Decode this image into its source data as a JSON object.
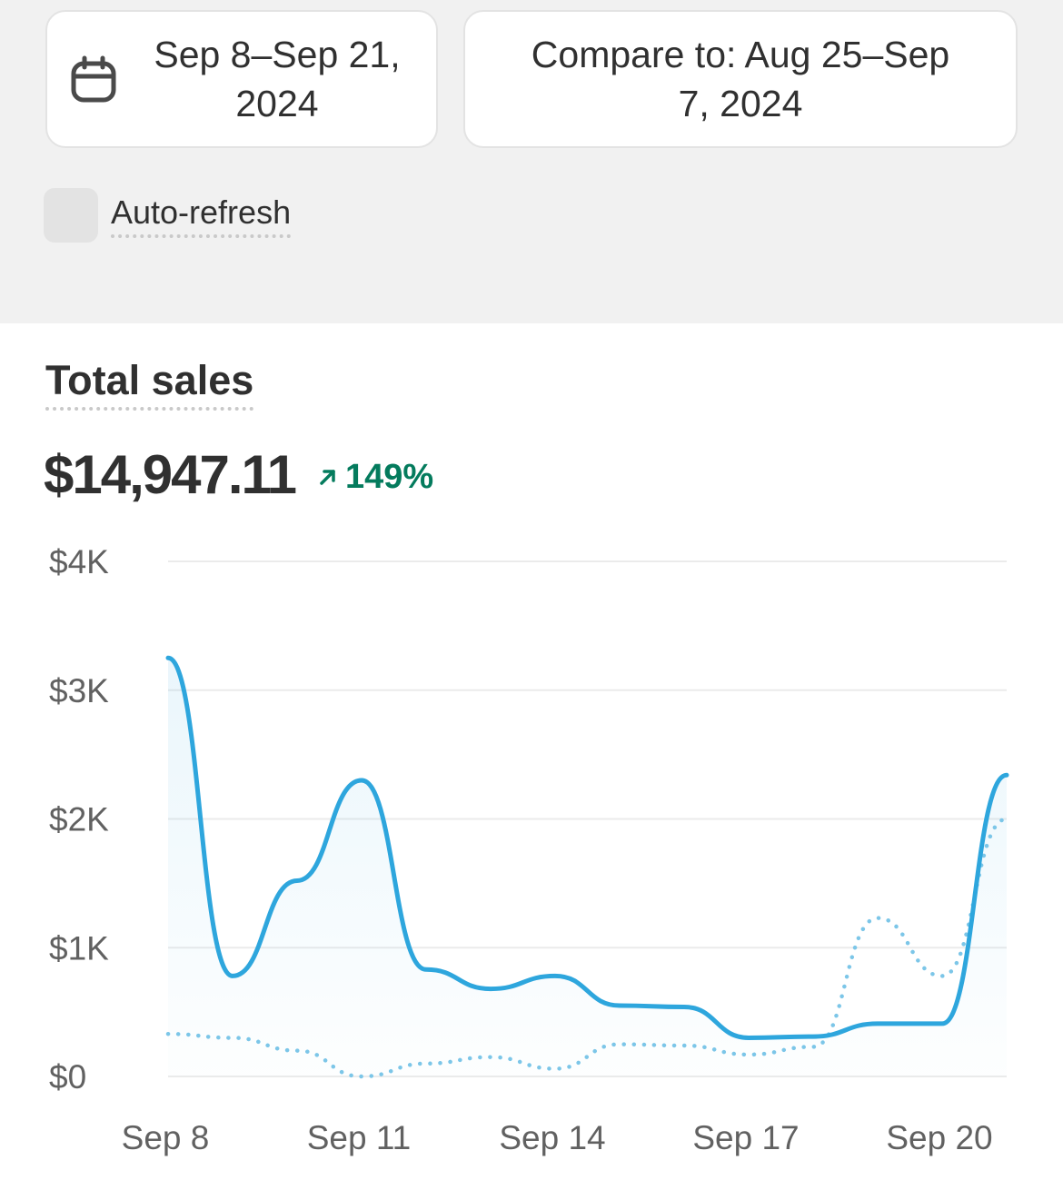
{
  "date_range": {
    "line1": "Sep 8–Sep 21,",
    "line2": "2024"
  },
  "compare": {
    "line1": "Compare to: Aug 25–Sep",
    "line2": "7, 2024"
  },
  "auto_refresh": {
    "label": "Auto-refresh",
    "checked": false
  },
  "metric": {
    "title": "Total sales",
    "value": "$14,947.11",
    "change": "149%",
    "trend": "up"
  },
  "colors": {
    "primary_line": "#2ea6dd",
    "comparison_line": "#7cc6e8",
    "positive": "#047b5d",
    "gridline": "#ebebeb"
  },
  "chart_data": {
    "type": "line",
    "title": "",
    "xlabel": "",
    "ylabel": "",
    "ylim": [
      0,
      4000
    ],
    "y_ticks": [
      "$0",
      "$1K",
      "$2K",
      "$3K",
      "$4K"
    ],
    "y_tick_values": [
      0,
      1000,
      2000,
      3000,
      4000
    ],
    "x_ticks": [
      "Sep 8",
      "Sep 11",
      "Sep 14",
      "Sep 17",
      "Sep 20"
    ],
    "x_tick_index": [
      0,
      3,
      6,
      9,
      12
    ],
    "grid": true,
    "series": [
      {
        "style": "solid",
        "values": [
          3250,
          780,
          1520,
          2300,
          830,
          680,
          780,
          550,
          540,
          300,
          310,
          410,
          410,
          2340
        ]
      },
      {
        "style": "dotted",
        "values": [
          330,
          300,
          200,
          0,
          100,
          150,
          60,
          250,
          240,
          170,
          230,
          1230,
          780,
          2000
        ]
      }
    ]
  }
}
